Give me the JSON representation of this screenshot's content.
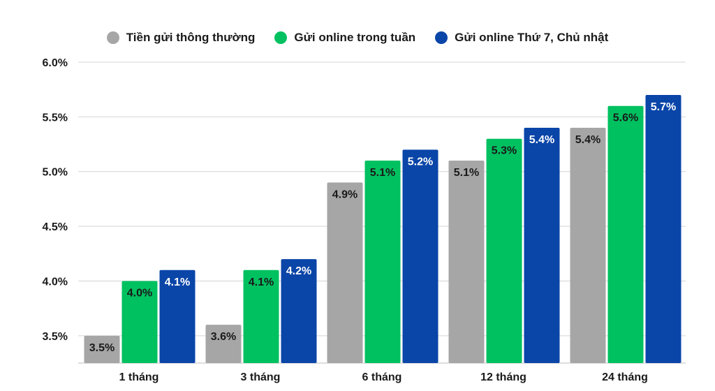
{
  "chart_data": {
    "type": "bar",
    "title": "",
    "xlabel": "",
    "ylabel": "",
    "categories": [
      "1 tháng",
      "3 tháng",
      "6 tháng",
      "12 tháng",
      "24 tháng"
    ],
    "ylim": [
      3.25,
      6.0
    ],
    "yticks": [
      "3.5%",
      "4.0%",
      "4.5%",
      "5.0%",
      "5.5%",
      "6.0%"
    ],
    "ytick_values": [
      3.5,
      4.0,
      4.5,
      5.0,
      5.5,
      6.0
    ],
    "grid": true,
    "legend_position": "top-center",
    "series": [
      {
        "name": "Tiền gửi thông thường",
        "color": "#a6a6a6",
        "label_color": "#1a1a1a",
        "values": [
          3.5,
          3.6,
          4.9,
          5.1,
          5.4
        ],
        "labels": [
          "3.5%",
          "3.6%",
          "4.9%",
          "5.1%",
          "5.4%"
        ]
      },
      {
        "name": "Gửi online trong tuần",
        "color": "#00c160",
        "label_color": "#1a1a1a",
        "values": [
          4.0,
          4.1,
          5.1,
          5.3,
          5.6
        ],
        "labels": [
          "4.0%",
          "4.1%",
          "5.1%",
          "5.3%",
          "5.6%"
        ]
      },
      {
        "name": "Gửi online Thứ 7, Chủ nhật",
        "color": "#0a45a8",
        "label_color": "#ffffff",
        "values": [
          4.1,
          4.2,
          5.2,
          5.4,
          5.7
        ],
        "labels": [
          "4.1%",
          "4.2%",
          "5.2%",
          "5.4%",
          "5.7%"
        ]
      }
    ]
  }
}
